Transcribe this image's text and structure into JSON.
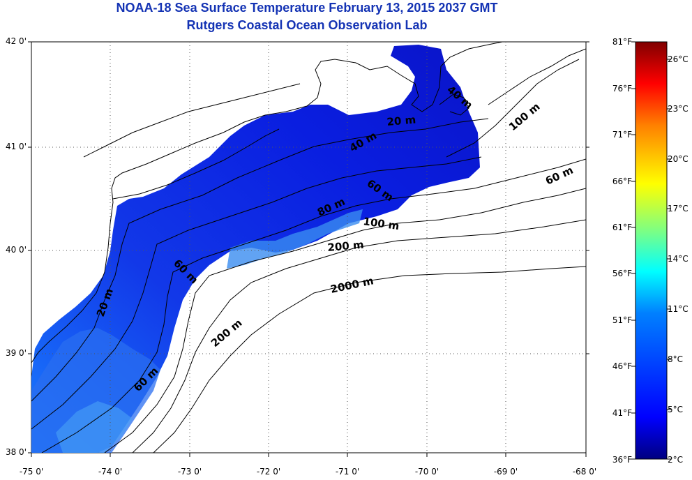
{
  "title": {
    "line1": "NOAA-18 Sea Surface Temperature February 13, 2015 2037 GMT",
    "line2": "Rutgers Coastal Ocean Observation Lab"
  },
  "map": {
    "lat_labels": [
      "42 0'",
      "41 0'",
      "40 0'",
      "39 0'",
      "38 0'"
    ],
    "lon_labels": [
      "-75 0'",
      "-74 0'",
      "-73 0'",
      "-72 0'",
      "-71 0'",
      "-70 0'",
      "-69 0'",
      "-68 0'"
    ],
    "lat_range": [
      38,
      42
    ],
    "lon_range": [
      -75,
      -68
    ],
    "grid": "dotted",
    "land_color": "#ffffff",
    "coastline_color": "#000000"
  },
  "contours": [
    {
      "label": "20 m"
    },
    {
      "label": "40 m"
    },
    {
      "label": "60 m"
    },
    {
      "label": "80 m"
    },
    {
      "label": "100 m"
    },
    {
      "label": "200 m"
    },
    {
      "label": "2000 m"
    },
    {
      "label": "100 m"
    },
    {
      "label": "60 m"
    },
    {
      "label": "20 m"
    },
    {
      "label": "60 m"
    },
    {
      "label": "200 m"
    },
    {
      "label": "60 m"
    },
    {
      "label": "40 m"
    }
  ],
  "colorbar": {
    "fahrenheit_labels": [
      "81°F",
      "76°F",
      "71°F",
      "66°F",
      "61°F",
      "56°F",
      "51°F",
      "46°F",
      "41°F",
      "36°F"
    ],
    "celsius_labels": [
      "26°C",
      "23°C",
      "20°C",
      "17°C",
      "14°C",
      "11°C",
      "8°C",
      "5°C",
      "2°C"
    ],
    "range_f": [
      36,
      81
    ],
    "range_c": [
      2,
      27
    ],
    "colors": [
      "#000080",
      "#0000ff",
      "#0080ff",
      "#00ffff",
      "#80ff80",
      "#ffff00",
      "#ff8000",
      "#ff0000",
      "#800000"
    ]
  }
}
